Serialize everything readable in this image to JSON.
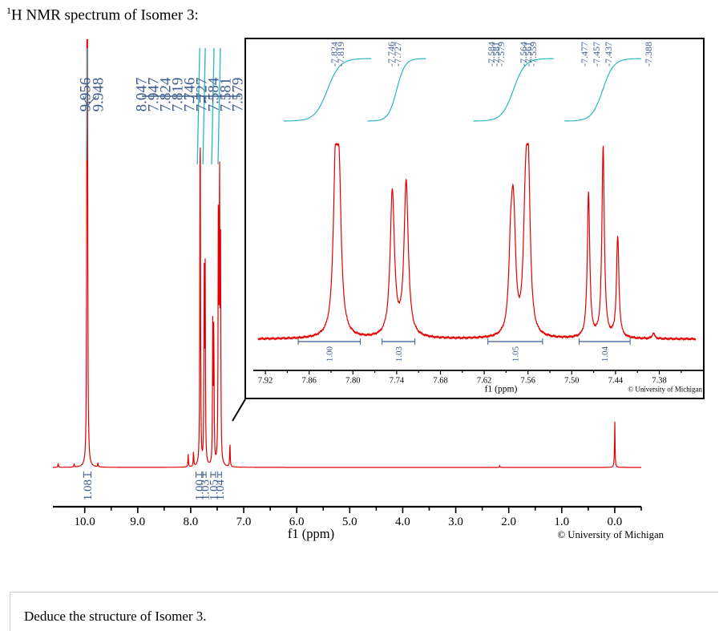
{
  "caption": {
    "superscript": "1",
    "text": "H NMR spectrum of Isomer 3:"
  },
  "question": "Deduce the structure of Isomer 3.",
  "colors": {
    "spectrum": "#e00000",
    "integral_curve": "#29b6c2",
    "peak_label": "#3b5b8f",
    "axis": "#000000"
  },
  "chart_data": [
    {
      "type": "line",
      "name": "full",
      "xlabel": "f1 (ppm)",
      "xlim": [
        10.6,
        -0.5
      ],
      "x_reversed": true,
      "ticks": [
        10.0,
        9.0,
        8.0,
        7.0,
        6.0,
        5.0,
        4.0,
        3.0,
        2.0,
        1.0,
        0.0
      ],
      "tick_labels": [
        "10.0",
        "9.0",
        "8.0",
        "7.0",
        "6.0",
        "5.0",
        "4.0",
        "3.0",
        "2.0",
        "1.0",
        "0.0"
      ],
      "copyright": "© University of Michigan",
      "peak_labels_a": [
        "9.956",
        "9.948"
      ],
      "peak_labels_b": [
        "8.047",
        "7.947",
        "7.824",
        "7.819",
        "7.746",
        "7.727",
        "7.584",
        "7.581",
        "7.579"
      ],
      "integrals": [
        {
          "label": "1.08",
          "from": 10.02,
          "to": 9.88
        },
        {
          "label": "1.00",
          "from": 7.9,
          "to": 7.79
        },
        {
          "label": "1.03",
          "from": 7.77,
          "to": 7.71
        },
        {
          "label": "1.05",
          "from": 7.62,
          "to": 7.53
        },
        {
          "label": "1.04",
          "from": 7.49,
          "to": 7.42
        }
      ],
      "peaks": [
        {
          "x": 10.5,
          "h": 0.01
        },
        {
          "x": 10.2,
          "h": 0.008
        },
        {
          "x": 9.956,
          "h": 0.99
        },
        {
          "x": 9.948,
          "h": 0.95
        },
        {
          "x": 9.75,
          "h": 0.01
        },
        {
          "x": 8.047,
          "h": 0.03
        },
        {
          "x": 7.947,
          "h": 0.035
        },
        {
          "x": 7.824,
          "h": 0.5
        },
        {
          "x": 7.819,
          "h": 0.47
        },
        {
          "x": 7.746,
          "h": 0.45
        },
        {
          "x": 7.727,
          "h": 0.46
        },
        {
          "x": 7.584,
          "h": 0.33
        },
        {
          "x": 7.564,
          "h": 0.34
        },
        {
          "x": 7.477,
          "h": 0.68
        },
        {
          "x": 7.457,
          "h": 0.7
        },
        {
          "x": 7.437,
          "h": 0.5
        },
        {
          "x": 7.26,
          "h": 0.06
        },
        {
          "x": 2.17,
          "h": 0.004
        },
        {
          "x": 0.0,
          "h": 0.11
        }
      ]
    },
    {
      "type": "line",
      "name": "inset",
      "xlabel": "f1 (ppm)",
      "xlim": [
        7.93,
        7.33
      ],
      "x_reversed": true,
      "ticks": [
        7.92,
        7.86,
        7.8,
        7.74,
        7.68,
        7.62,
        7.56,
        7.5,
        7.44,
        7.38
      ],
      "tick_labels": [
        "7.92",
        "7.86",
        "7.80",
        "7.74",
        "7.68",
        "7.62",
        "7.56",
        "7.50",
        "7.44",
        "7.38"
      ],
      "copyright": "© University of Michigan",
      "peak_labels": [
        "7.824",
        "7.819",
        "7.746",
        "7.727",
        "7.584",
        "7.581",
        "7.579",
        "7.564",
        "7.561",
        "7.559",
        "7.477",
        "7.457",
        "7.437",
        "7.388"
      ],
      "integrals": [
        {
          "label": "1.00",
          "from": 7.875,
          "to": 7.79
        },
        {
          "label": "1.03",
          "from": 7.76,
          "to": 7.715
        },
        {
          "label": "1.05",
          "from": 7.615,
          "to": 7.54
        },
        {
          "label": "1.04",
          "from": 7.49,
          "to": 7.42
        }
      ],
      "peaks": [
        {
          "x": 7.824,
          "h": 0.8,
          "w": 0.0035
        },
        {
          "x": 7.819,
          "h": 0.74,
          "w": 0.0035
        },
        {
          "x": 7.746,
          "h": 0.76,
          "w": 0.0035
        },
        {
          "x": 7.727,
          "h": 0.81,
          "w": 0.0035
        },
        {
          "x": 7.584,
          "h": 0.34,
          "w": 0.003
        },
        {
          "x": 7.581,
          "h": 0.38,
          "w": 0.003
        },
        {
          "x": 7.579,
          "h": 0.32,
          "w": 0.003
        },
        {
          "x": 7.564,
          "h": 0.44,
          "w": 0.003
        },
        {
          "x": 7.561,
          "h": 0.52,
          "w": 0.003
        },
        {
          "x": 7.559,
          "h": 0.48,
          "w": 0.003
        },
        {
          "x": 7.477,
          "h": 0.76,
          "w": 0.002
        },
        {
          "x": 7.457,
          "h": 1.0,
          "w": 0.002
        },
        {
          "x": 7.437,
          "h": 0.53,
          "w": 0.002
        },
        {
          "x": 7.388,
          "h": 0.03,
          "w": 0.002
        }
      ]
    }
  ]
}
